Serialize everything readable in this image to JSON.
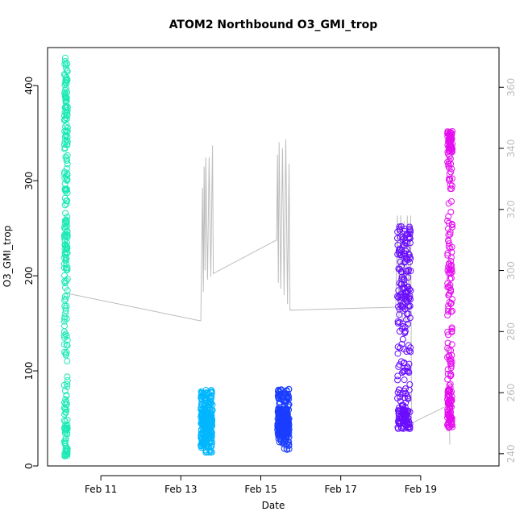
{
  "chart_data": {
    "type": "scatter",
    "title": "ATOM2 Northbound O3_GMI_trop",
    "xlabel": "Date",
    "ylabel": "O3_GMI_trop",
    "xlim": [
      "2010-02-09T16:00",
      "2010-02-20T23:00"
    ],
    "xticks": [
      {
        "label": "Feb 11",
        "date": "2010-02-11"
      },
      {
        "label": "Feb 13",
        "date": "2010-02-13"
      },
      {
        "label": "Feb 15",
        "date": "2010-02-15"
      },
      {
        "label": "Feb 17",
        "date": "2010-02-17"
      },
      {
        "label": "Feb 19",
        "date": "2010-02-19"
      }
    ],
    "ylim_left": [
      0,
      440
    ],
    "yticks_left": [
      0,
      100,
      200,
      300,
      400
    ],
    "ylim_right": [
      236,
      373
    ],
    "yticks_right": [
      240,
      260,
      280,
      300,
      320,
      340,
      360
    ],
    "grid": false,
    "marker": "open-circle",
    "series": [
      {
        "color": "#1de9b6",
        "x_range": [
          "2010-02-10T02:00",
          "2010-02-10T04:00"
        ],
        "y_range": [
          10,
          430
        ],
        "dense_bands": [
          [
            10,
            60
          ],
          [
            215,
            255
          ],
          [
            340,
            430
          ]
        ]
      },
      {
        "color": "#00b7ff",
        "x_range": [
          "2010-02-13T12:00",
          "2010-02-13T19:00"
        ],
        "y_range": [
          14,
          80
        ],
        "dense_bands": [
          [
            20,
            60
          ]
        ]
      },
      {
        "color": "#1a3dff",
        "x_range": [
          "2010-02-15T10:00",
          "2010-02-15T17:00"
        ],
        "y_range": [
          17,
          82
        ],
        "dense_bands": [
          [
            30,
            60
          ]
        ]
      },
      {
        "color": "#6a0dff",
        "x_range": [
          "2010-02-18T10:00",
          "2010-02-18T18:00"
        ],
        "y_range": [
          36,
          252
        ],
        "dense_bands": [
          [
            38,
            60
          ],
          [
            160,
            252
          ]
        ]
      },
      {
        "color": "#e60ff0",
        "x_range": [
          "2010-02-19T16:00",
          "2010-02-19T19:00"
        ],
        "y_range": [
          40,
          352
        ],
        "dense_bands": [
          [
            40,
            80
          ],
          [
            330,
            352
          ]
        ]
      }
    ],
    "right_axis_series": {
      "color": "#bdbdbd",
      "points": [
        [
          "2010-02-10T04:00",
          292.5
        ],
        [
          "2010-02-13T12:00",
          283.5
        ],
        [
          "2010-02-13T13:00",
          327
        ],
        [
          "2010-02-13T13:30",
          293
        ],
        [
          "2010-02-13T14:00",
          334
        ],
        [
          "2010-02-13T14:30",
          300
        ],
        [
          "2010-02-13T15:00",
          337
        ],
        [
          "2010-02-13T16:00",
          297
        ],
        [
          "2010-02-13T17:00",
          337
        ],
        [
          "2010-02-13T18:00",
          298
        ],
        [
          "2010-02-13T19:00",
          341
        ],
        [
          "2010-02-13T19:30",
          299
        ],
        [
          "2010-02-15T09:30",
          310
        ],
        [
          "2010-02-15T10:00",
          338
        ],
        [
          "2010-02-15T10:30",
          296
        ],
        [
          "2010-02-15T11:00",
          342
        ],
        [
          "2010-02-15T12:00",
          294
        ],
        [
          "2010-02-15T13:00",
          340
        ],
        [
          "2010-02-15T14:00",
          292
        ],
        [
          "2010-02-15T15:00",
          343
        ],
        [
          "2010-02-15T16:00",
          289
        ],
        [
          "2010-02-15T17:00",
          335
        ],
        [
          "2010-02-15T17:30",
          287
        ],
        [
          "2010-02-18T09:00",
          288
        ],
        [
          "2010-02-18T10:00",
          318
        ],
        [
          "2010-02-18T11:00",
          285
        ],
        [
          "2010-02-18T12:00",
          318
        ],
        [
          "2010-02-18T13:00",
          283
        ],
        [
          "2010-02-18T14:00",
          316
        ],
        [
          "2010-02-18T15:00",
          282
        ],
        [
          "2010-02-18T16:00",
          318
        ],
        [
          "2010-02-18T17:00",
          281
        ],
        [
          "2010-02-18T18:00",
          318
        ],
        [
          "2010-02-18T18:30",
          250
        ],
        [
          "2010-02-19T17:00",
          256
        ],
        [
          "2010-02-19T17:30",
          243
        ]
      ]
    }
  }
}
